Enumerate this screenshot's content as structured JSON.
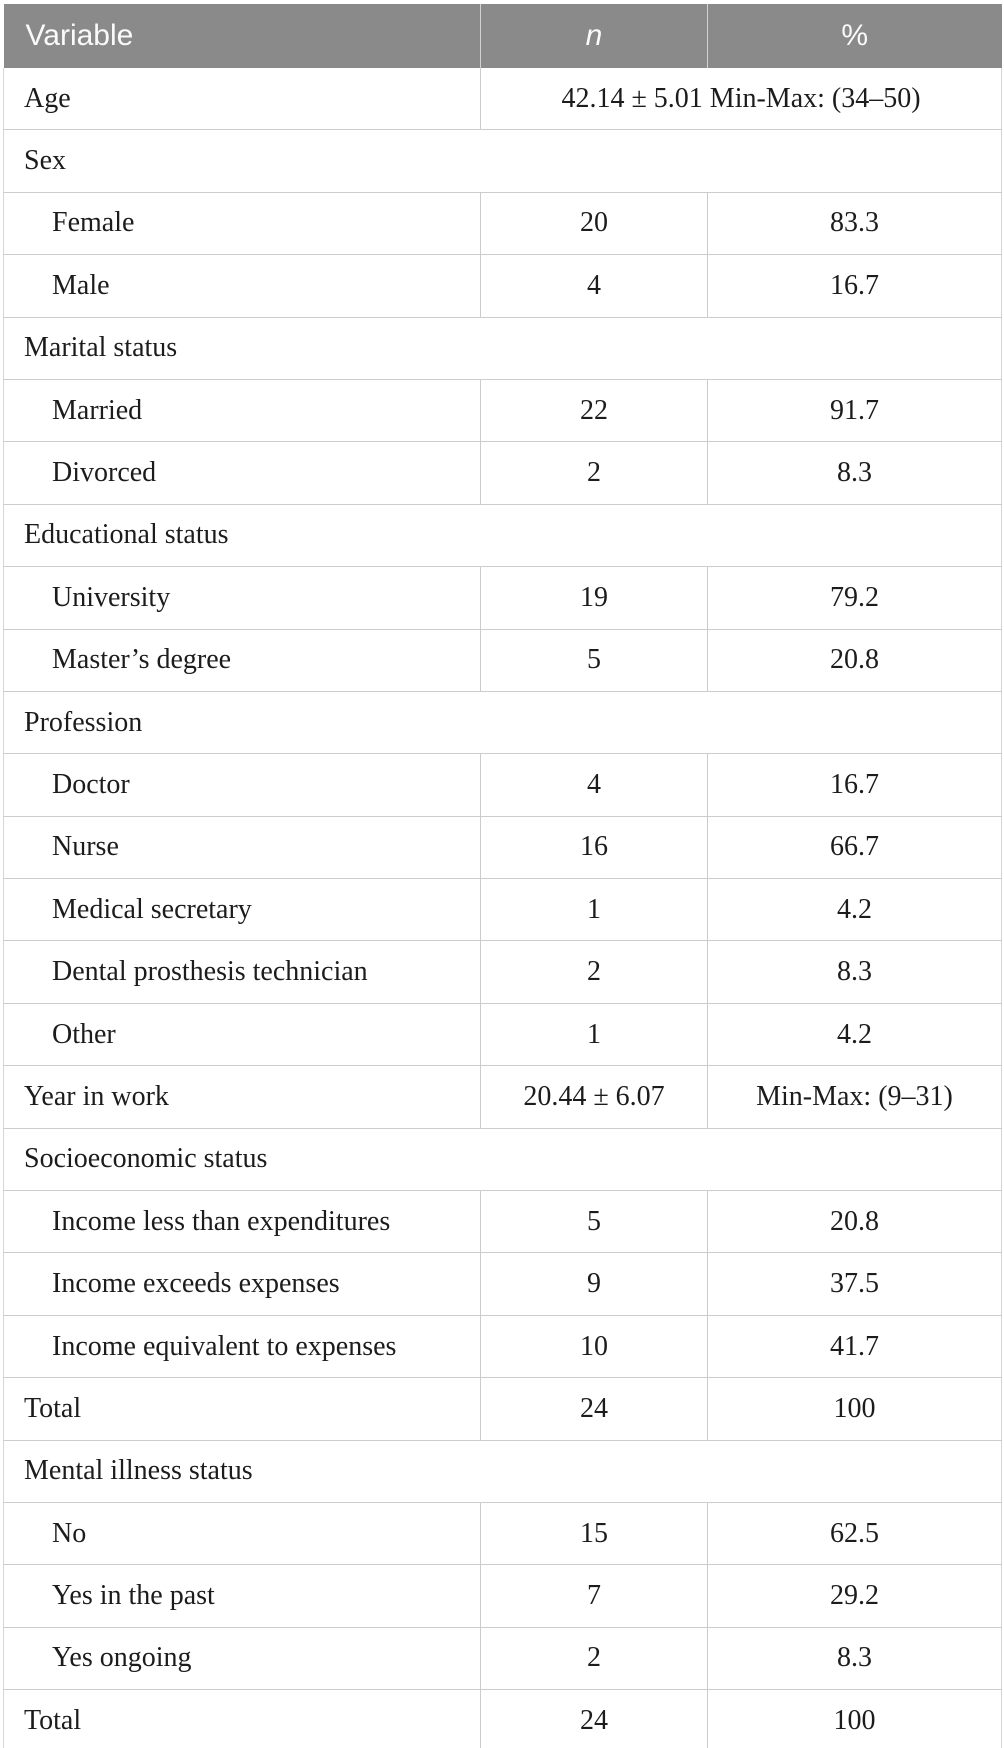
{
  "table": {
    "header": {
      "variable": "Variable",
      "n": "n",
      "pct": "%"
    },
    "style": {
      "header_bg": "#8a8a8a",
      "header_text": "#fafafa",
      "rule_color": "#cccccc",
      "body_text": "#1c1c1c"
    },
    "rows": [
      {
        "type": "span",
        "label": "Age",
        "value": "42.14 ± 5.01 Min-Max: (34–50)"
      },
      {
        "type": "category",
        "label": "Sex"
      },
      {
        "type": "item",
        "label": "Female",
        "n": "20",
        "pct": "83.3"
      },
      {
        "type": "item",
        "label": "Male",
        "n": "4",
        "pct": "16.7"
      },
      {
        "type": "category",
        "label": "Marital status"
      },
      {
        "type": "item",
        "label": "Married",
        "n": "22",
        "pct": "91.7"
      },
      {
        "type": "item",
        "label": "Divorced",
        "n": "2",
        "pct": "8.3"
      },
      {
        "type": "category",
        "label": "Educational status"
      },
      {
        "type": "item",
        "label": "University",
        "n": "19",
        "pct": "79.2"
      },
      {
        "type": "item",
        "label": "Master’s degree",
        "n": "5",
        "pct": "20.8"
      },
      {
        "type": "category",
        "label": "Profession"
      },
      {
        "type": "item",
        "label": "Doctor",
        "n": "4",
        "pct": "16.7"
      },
      {
        "type": "item",
        "label": "Nurse",
        "n": "16",
        "pct": "66.7"
      },
      {
        "type": "item",
        "label": "Medical secretary",
        "n": "1",
        "pct": "4.2"
      },
      {
        "type": "item",
        "label": "Dental prosthesis technician",
        "n": "2",
        "pct": "8.3"
      },
      {
        "type": "item",
        "label": "Other",
        "n": "1",
        "pct": "4.2"
      },
      {
        "type": "row",
        "label": "Year in work",
        "n": "20.44 ± 6.07",
        "pct": "Min-Max: (9–31)"
      },
      {
        "type": "category",
        "label": "Socioeconomic status"
      },
      {
        "type": "item",
        "label": "Income less than expenditures",
        "n": "5",
        "pct": "20.8"
      },
      {
        "type": "item",
        "label": "Income exceeds expenses",
        "n": "9",
        "pct": "37.5"
      },
      {
        "type": "item",
        "label": "Income equivalent to expenses",
        "n": "10",
        "pct": "41.7"
      },
      {
        "type": "row",
        "label": "Total",
        "n": "24",
        "pct": "100"
      },
      {
        "type": "category",
        "label": "Mental illness status"
      },
      {
        "type": "item",
        "label": "No",
        "n": "15",
        "pct": "62.5"
      },
      {
        "type": "item",
        "label": "Yes in the past",
        "n": "7",
        "pct": "29.2"
      },
      {
        "type": "item",
        "label": "Yes ongoing",
        "n": "2",
        "pct": "8.3"
      },
      {
        "type": "row",
        "label": "Total",
        "n": "24",
        "pct": "100"
      }
    ]
  }
}
